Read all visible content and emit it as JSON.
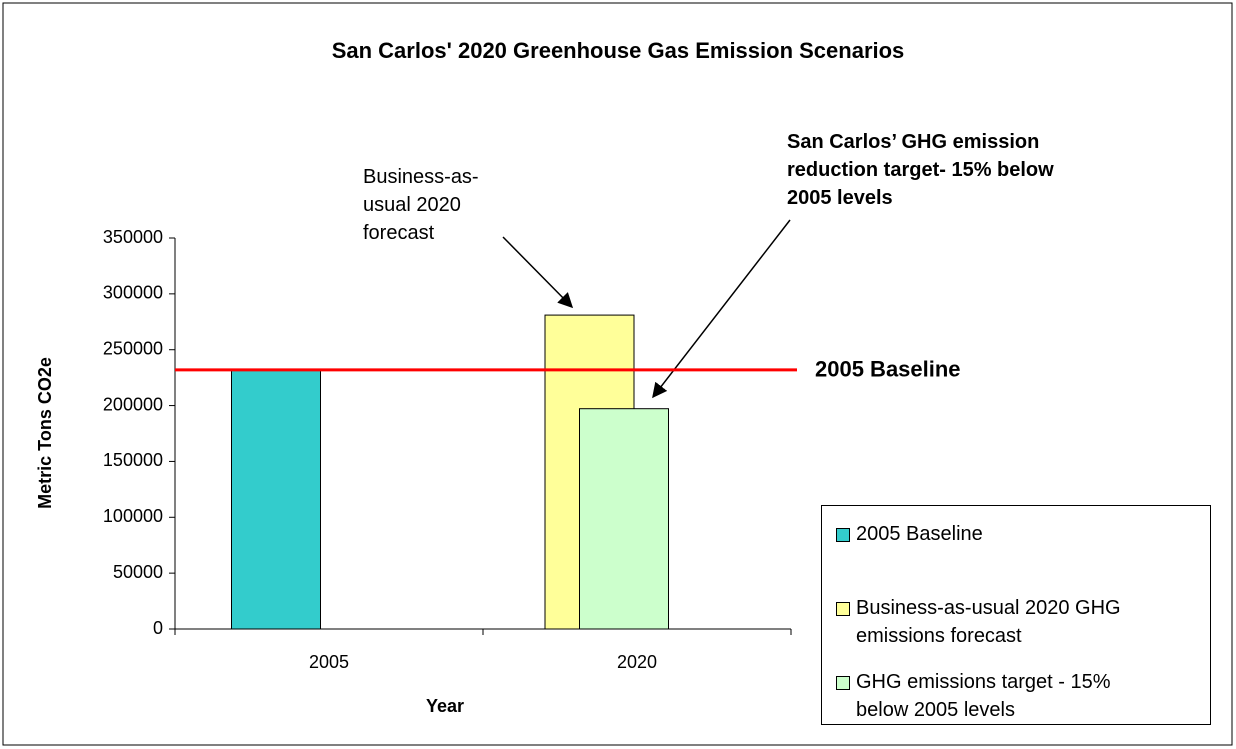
{
  "chart_data": {
    "type": "bar",
    "title": "San Carlos' 2020 Greenhouse Gas Emission Scenarios",
    "x_label": "Year",
    "y_label": "Metric Tons CO2e",
    "categories": [
      "2005",
      "2020"
    ],
    "series": [
      {
        "name": "2005 Baseline",
        "color": "#33cccc",
        "values": [
          232000,
          null
        ]
      },
      {
        "name": "Business-as-usual 2020 GHG emissions forecast",
        "color": "#ffff99",
        "values": [
          null,
          281000
        ]
      },
      {
        "name": "GHG emissions target - 15% below 2005 levels",
        "color": "#ccffcc",
        "values": [
          null,
          197200
        ]
      }
    ],
    "ylim": [
      0,
      350000
    ],
    "yticks": [
      0,
      50000,
      100000,
      150000,
      200000,
      250000,
      300000,
      350000
    ],
    "reference_line": {
      "value": 232000,
      "label": "2005 Baseline",
      "color": "#ff0000"
    },
    "annotations": [
      {
        "text": "Business-as-usual 2020 forecast"
      },
      {
        "text": "San Carlos’ GHG emission reduction target- 15% below 2005 levels"
      }
    ],
    "legend": "lower right"
  }
}
